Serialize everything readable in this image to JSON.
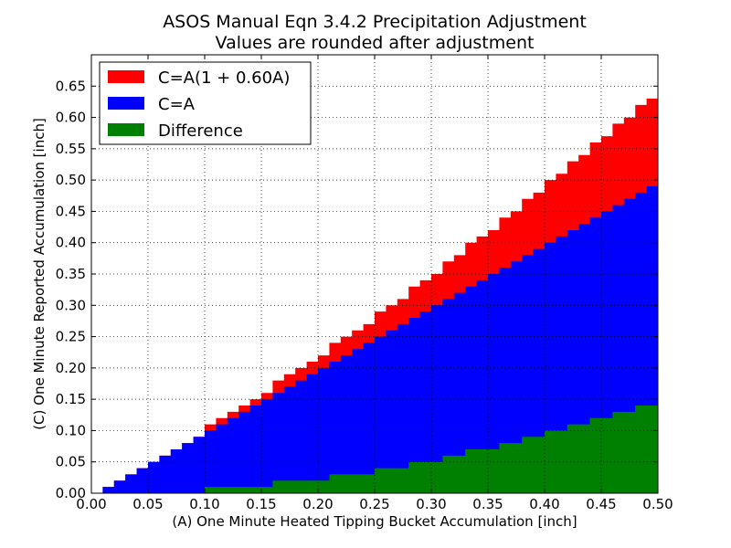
{
  "chart_data": {
    "type": "area",
    "title": "ASOS Manual Eqn 3.4.2 Precipitation Adjustment",
    "subtitle": "Values are rounded after adjustment",
    "xlabel": "(A) One Minute Heated Tipping Bucket Accumulation [inch]",
    "ylabel": "(C) One Minute Reported Accumulation [inch]",
    "xlim": [
      0.0,
      0.5
    ],
    "ylim": [
      0.0,
      0.7
    ],
    "x_step": 0.01,
    "x_ticks": [
      "0.00",
      "0.05",
      "0.10",
      "0.15",
      "0.20",
      "0.25",
      "0.30",
      "0.35",
      "0.40",
      "0.45",
      "0.50"
    ],
    "y_ticks": [
      "0.00",
      "0.05",
      "0.10",
      "0.15",
      "0.20",
      "0.25",
      "0.30",
      "0.35",
      "0.40",
      "0.45",
      "0.50",
      "0.55",
      "0.60",
      "0.65"
    ],
    "grid": true,
    "legend_position": "top-left",
    "series": [
      {
        "name": "C=A(1 + 0.60A)",
        "color": "#ff0000",
        "x": [
          0.0,
          0.01,
          0.02,
          0.03,
          0.04,
          0.05,
          0.06,
          0.07,
          0.08,
          0.09,
          0.1,
          0.11,
          0.12,
          0.13,
          0.14,
          0.15,
          0.16,
          0.17,
          0.18,
          0.19,
          0.2,
          0.21,
          0.22,
          0.23,
          0.24,
          0.25,
          0.26,
          0.27,
          0.28,
          0.29,
          0.3,
          0.31,
          0.32,
          0.33,
          0.34,
          0.35,
          0.36,
          0.37,
          0.38,
          0.39,
          0.4,
          0.41,
          0.42,
          0.43,
          0.44,
          0.45,
          0.46,
          0.47,
          0.48,
          0.49,
          0.5
        ],
        "values": [
          0.0,
          0.01,
          0.02,
          0.03,
          0.04,
          0.05,
          0.06,
          0.07,
          0.08,
          0.09,
          0.11,
          0.12,
          0.13,
          0.14,
          0.15,
          0.16,
          0.18,
          0.19,
          0.2,
          0.21,
          0.22,
          0.24,
          0.25,
          0.26,
          0.27,
          0.29,
          0.3,
          0.31,
          0.33,
          0.34,
          0.35,
          0.37,
          0.38,
          0.4,
          0.41,
          0.42,
          0.44,
          0.45,
          0.47,
          0.48,
          0.5,
          0.51,
          0.53,
          0.54,
          0.56,
          0.57,
          0.59,
          0.6,
          0.62,
          0.63,
          0.65
        ]
      },
      {
        "name": "C=A",
        "color": "#0000ff",
        "x": [
          0.0,
          0.01,
          0.02,
          0.03,
          0.04,
          0.05,
          0.06,
          0.07,
          0.08,
          0.09,
          0.1,
          0.11,
          0.12,
          0.13,
          0.14,
          0.15,
          0.16,
          0.17,
          0.18,
          0.19,
          0.2,
          0.21,
          0.22,
          0.23,
          0.24,
          0.25,
          0.26,
          0.27,
          0.28,
          0.29,
          0.3,
          0.31,
          0.32,
          0.33,
          0.34,
          0.35,
          0.36,
          0.37,
          0.38,
          0.39,
          0.4,
          0.41,
          0.42,
          0.43,
          0.44,
          0.45,
          0.46,
          0.47,
          0.48,
          0.49,
          0.5
        ],
        "values": [
          0.0,
          0.01,
          0.02,
          0.03,
          0.04,
          0.05,
          0.06,
          0.07,
          0.08,
          0.09,
          0.1,
          0.11,
          0.12,
          0.13,
          0.14,
          0.15,
          0.16,
          0.17,
          0.18,
          0.19,
          0.2,
          0.21,
          0.22,
          0.23,
          0.24,
          0.25,
          0.26,
          0.27,
          0.28,
          0.29,
          0.3,
          0.31,
          0.32,
          0.33,
          0.34,
          0.35,
          0.36,
          0.37,
          0.38,
          0.39,
          0.4,
          0.41,
          0.42,
          0.43,
          0.44,
          0.45,
          0.46,
          0.47,
          0.48,
          0.49,
          0.5
        ]
      },
      {
        "name": "Difference",
        "color": "#008000",
        "x": [
          0.0,
          0.01,
          0.02,
          0.03,
          0.04,
          0.05,
          0.06,
          0.07,
          0.08,
          0.09,
          0.1,
          0.11,
          0.12,
          0.13,
          0.14,
          0.15,
          0.16,
          0.17,
          0.18,
          0.19,
          0.2,
          0.21,
          0.22,
          0.23,
          0.24,
          0.25,
          0.26,
          0.27,
          0.28,
          0.29,
          0.3,
          0.31,
          0.32,
          0.33,
          0.34,
          0.35,
          0.36,
          0.37,
          0.38,
          0.39,
          0.4,
          0.41,
          0.42,
          0.43,
          0.44,
          0.45,
          0.46,
          0.47,
          0.48,
          0.49,
          0.5
        ],
        "values": [
          0.0,
          0.0,
          0.0,
          0.0,
          0.0,
          0.0,
          0.0,
          0.0,
          0.0,
          0.0,
          0.01,
          0.01,
          0.01,
          0.01,
          0.01,
          0.01,
          0.02,
          0.02,
          0.02,
          0.02,
          0.02,
          0.03,
          0.03,
          0.03,
          0.03,
          0.04,
          0.04,
          0.04,
          0.05,
          0.05,
          0.05,
          0.06,
          0.06,
          0.07,
          0.07,
          0.07,
          0.08,
          0.08,
          0.09,
          0.09,
          0.1,
          0.1,
          0.11,
          0.11,
          0.12,
          0.12,
          0.13,
          0.13,
          0.14,
          0.14,
          0.15
        ]
      }
    ]
  }
}
